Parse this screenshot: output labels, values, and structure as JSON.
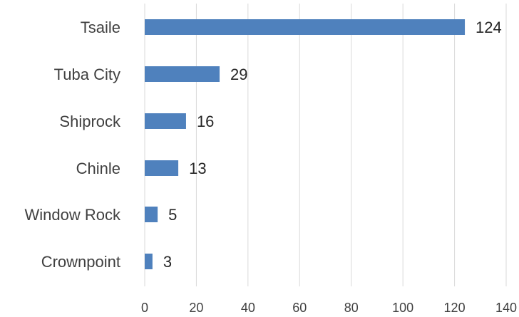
{
  "chart_data": {
    "type": "bar",
    "orientation": "horizontal",
    "title": "",
    "xlabel": "",
    "ylabel": "",
    "categories": [
      "Tsaile",
      "Tuba City",
      "Shiprock",
      "Chinle",
      "Window Rock",
      "Crownpoint"
    ],
    "values": [
      124,
      29,
      16,
      13,
      5,
      3
    ],
    "xlim": [
      0,
      140
    ],
    "x_ticks": [
      "0",
      "20",
      "40",
      "60",
      "80",
      "100",
      "120",
      "140"
    ],
    "x_tick_values": [
      0,
      20,
      40,
      60,
      80,
      100,
      120,
      140
    ],
    "grid": "vertical",
    "legend": "none",
    "bar_color": "#4f81bd",
    "data_labels": true
  }
}
